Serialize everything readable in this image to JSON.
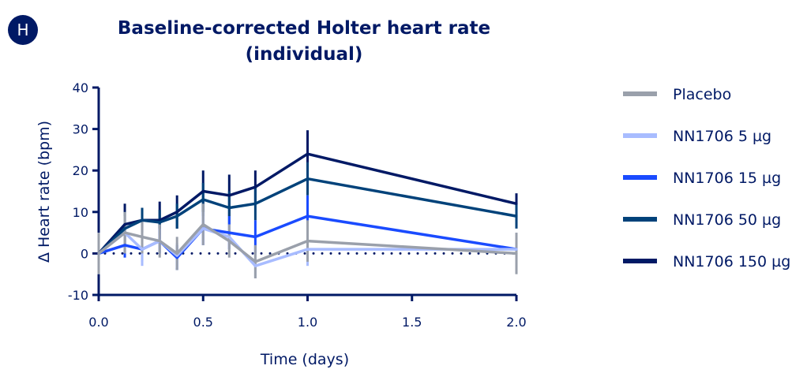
{
  "panel": {
    "badge_letter": "H"
  },
  "chart_data": {
    "type": "line",
    "title": "Baseline-corrected Holter heart rate",
    "subtitle": "(individual)",
    "xlabel": "Time (days)",
    "ylabel": "Δ Heart rate (bpm)",
    "xlim": [
      0,
      2.0
    ],
    "ylim": [
      -10,
      40
    ],
    "xticks": [
      0.0,
      0.5,
      1.0,
      1.5,
      2.0
    ],
    "xtick_labels": [
      "0.0",
      "0.5",
      "1.0",
      "1.5",
      "2.0"
    ],
    "yticks": [
      -10,
      0,
      10,
      20,
      30,
      40
    ],
    "ytick_labels": [
      "-10",
      "0",
      "10",
      "20",
      "30",
      "40"
    ],
    "reference_line": {
      "y": 0,
      "style": "dotted"
    },
    "grid": false,
    "legend_position": "right",
    "x": [
      0,
      0.125,
      0.208,
      0.292,
      0.375,
      0.5,
      0.625,
      0.75,
      1.0,
      2.0
    ],
    "series": [
      {
        "name": "Placebo",
        "color": "#9AA0AB",
        "values": [
          0,
          5,
          4,
          3,
          0,
          7,
          3,
          -2,
          3,
          0
        ],
        "error": [
          5,
          5,
          4,
          4,
          4,
          5,
          4,
          4,
          5,
          5
        ]
      },
      {
        "name": "NN1706 5 µg",
        "color": "#A8BCFF",
        "values": [
          0,
          5,
          1,
          3,
          -0.5,
          6,
          4,
          -3,
          1,
          1
        ],
        "error": [
          5,
          4,
          4,
          3,
          3,
          4,
          3,
          3,
          4,
          4
        ]
      },
      {
        "name": "NN1706 15 µg",
        "color": "#1A4BFF",
        "values": [
          0,
          2,
          1,
          3,
          -1,
          6,
          5,
          4,
          9,
          1
        ],
        "error": [
          3,
          3,
          3,
          3,
          3,
          4,
          4,
          4,
          5,
          3
        ]
      },
      {
        "name": "NN1706 50 µg",
        "color": "#00427A",
        "values": [
          0,
          6,
          8,
          7.5,
          9,
          13,
          11,
          12,
          18,
          9
        ],
        "error": [
          3,
          4,
          3,
          3,
          3,
          4,
          4,
          4,
          4,
          3
        ]
      },
      {
        "name": "NN1706 150 µg",
        "color": "#001965",
        "values": [
          0,
          7,
          8,
          8,
          10,
          15,
          14,
          16,
          24,
          12
        ],
        "error": [
          3,
          5,
          3,
          4.5,
          4,
          5,
          5,
          4,
          5.7,
          2.5
        ]
      }
    ]
  }
}
